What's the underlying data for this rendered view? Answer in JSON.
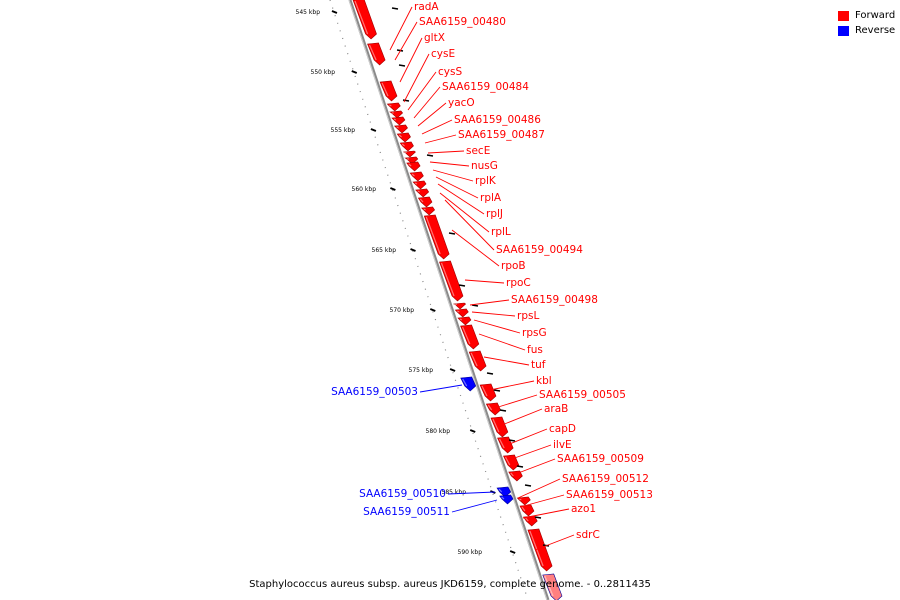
{
  "legend": {
    "forward": {
      "label": "Forward",
      "color": "#ff0000"
    },
    "reverse": {
      "label": "Reverse",
      "color": "#0000ff"
    }
  },
  "caption": "Staphylococcus aureus subsp. aureus JKD6159, complete genome. - 0..2811435",
  "ticks": [
    "545 kbp",
    "550 kbp",
    "555 kbp",
    "560 kbp",
    "565 kbp",
    "570 kbp",
    "575 kbp",
    "580 kbp",
    "585 kbp",
    "590 kbp"
  ],
  "genes": [
    {
      "label": "radA",
      "strand": "forward"
    },
    {
      "label": "SAA6159_00480",
      "strand": "forward"
    },
    {
      "label": "gltX",
      "strand": "forward"
    },
    {
      "label": "cysE",
      "strand": "forward"
    },
    {
      "label": "cysS",
      "strand": "forward"
    },
    {
      "label": "SAA6159_00484",
      "strand": "forward"
    },
    {
      "label": "yacO",
      "strand": "forward"
    },
    {
      "label": "SAA6159_00486",
      "strand": "forward"
    },
    {
      "label": "SAA6159_00487",
      "strand": "forward"
    },
    {
      "label": "secE",
      "strand": "forward"
    },
    {
      "label": "nusG",
      "strand": "forward"
    },
    {
      "label": "rplK",
      "strand": "forward"
    },
    {
      "label": "rplA",
      "strand": "forward"
    },
    {
      "label": "rplJ",
      "strand": "forward"
    },
    {
      "label": "rplL",
      "strand": "forward"
    },
    {
      "label": "SAA6159_00494",
      "strand": "forward"
    },
    {
      "label": "rpoB",
      "strand": "forward"
    },
    {
      "label": "rpoC",
      "strand": "forward"
    },
    {
      "label": "SAA6159_00498",
      "strand": "forward"
    },
    {
      "label": "rpsL",
      "strand": "forward"
    },
    {
      "label": "rpsG",
      "strand": "forward"
    },
    {
      "label": "fus",
      "strand": "forward"
    },
    {
      "label": "tuf",
      "strand": "forward"
    },
    {
      "label": "kbl",
      "strand": "forward"
    },
    {
      "label": "SAA6159_00505",
      "strand": "forward"
    },
    {
      "label": "araB",
      "strand": "forward"
    },
    {
      "label": "capD",
      "strand": "forward"
    },
    {
      "label": "ilvE",
      "strand": "forward"
    },
    {
      "label": "SAA6159_00509",
      "strand": "forward"
    },
    {
      "label": "SAA6159_00512",
      "strand": "forward"
    },
    {
      "label": "SAA6159_00513",
      "strand": "forward"
    },
    {
      "label": "azo1",
      "strand": "forward"
    },
    {
      "label": "sdrC",
      "strand": "forward"
    },
    {
      "label": "SAA6159_00503",
      "strand": "reverse"
    },
    {
      "label": "SAA6159_00510",
      "strand": "reverse"
    },
    {
      "label": "SAA6159_00511",
      "strand": "reverse"
    }
  ]
}
